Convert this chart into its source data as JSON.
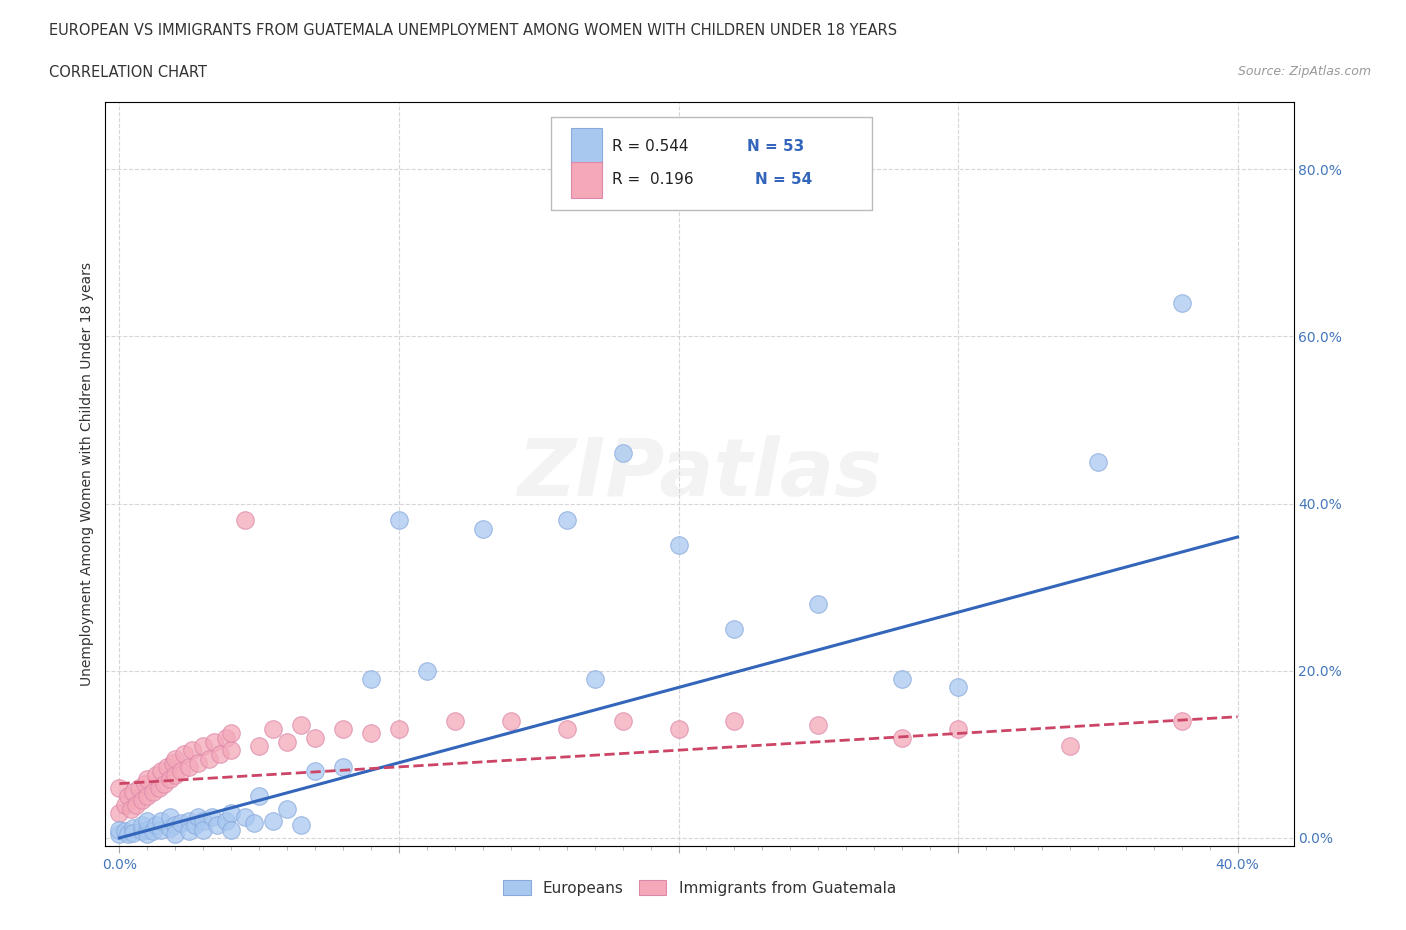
{
  "title_line1": "EUROPEAN VS IMMIGRANTS FROM GUATEMALA UNEMPLOYMENT AMONG WOMEN WITH CHILDREN UNDER 18 YEARS",
  "title_line2": "CORRELATION CHART",
  "source_text": "Source: ZipAtlas.com",
  "ylabel": "Unemployment Among Women with Children Under 18 years",
  "xlim": [
    -0.005,
    0.42
  ],
  "ylim": [
    -0.01,
    0.88
  ],
  "xtick_labels": [
    "0.0%",
    "",
    "",
    "",
    "",
    "",
    "",
    "",
    "",
    "",
    "",
    "",
    "",
    "",
    "",
    "",
    "",
    "",
    "",
    "",
    "",
    "",
    "",
    "",
    "",
    "",
    "",
    "",
    "",
    "",
    "",
    "",
    "",
    "",
    "",
    "",
    "",
    "",
    "",
    "",
    "40.0%"
  ],
  "xtick_values": [
    0.0,
    0.01,
    0.02,
    0.03,
    0.04,
    0.05,
    0.06,
    0.07,
    0.08,
    0.09,
    0.1,
    0.11,
    0.12,
    0.13,
    0.14,
    0.15,
    0.16,
    0.17,
    0.18,
    0.19,
    0.2,
    0.21,
    0.22,
    0.23,
    0.24,
    0.25,
    0.26,
    0.27,
    0.28,
    0.29,
    0.3,
    0.31,
    0.32,
    0.33,
    0.34,
    0.35,
    0.36,
    0.37,
    0.38,
    0.39,
    0.4
  ],
  "ytick_labels": [
    "0.0%",
    "20.0%",
    "40.0%",
    "60.0%",
    "80.0%"
  ],
  "ytick_values": [
    0.0,
    0.2,
    0.4,
    0.6,
    0.8
  ],
  "blue_color": "#a8c8f0",
  "blue_edge_color": "#88aadd",
  "pink_color": "#f4a8b8",
  "pink_edge_color": "#dd88aa",
  "blue_line_color": "#3366bb",
  "pink_line_color": "#cc4466",
  "background_color": "#ffffff",
  "grid_color": "#cccccc",
  "watermark_text": "ZIPatlas",
  "label1": "Europeans",
  "label2": "Immigrants from Guatemala",
  "title_color": "#333333",
  "axis_label_color": "#555555",
  "tick_color": "#4477bb",
  "r_text_color": "#222222",
  "n_text_color": "#3366bb",
  "blue_scatter_x": [
    0.0,
    0.0,
    0.002,
    0.003,
    0.005,
    0.005,
    0.008,
    0.008,
    0.01,
    0.01,
    0.01,
    0.012,
    0.013,
    0.015,
    0.015,
    0.018,
    0.018,
    0.02,
    0.02,
    0.022,
    0.025,
    0.025,
    0.027,
    0.028,
    0.03,
    0.03,
    0.033,
    0.035,
    0.038,
    0.04,
    0.04,
    0.045,
    0.048,
    0.05,
    0.055,
    0.06,
    0.065,
    0.07,
    0.08,
    0.09,
    0.1,
    0.11,
    0.13,
    0.16,
    0.17,
    0.18,
    0.2,
    0.22,
    0.25,
    0.28,
    0.3,
    0.35,
    0.38
  ],
  "blue_scatter_y": [
    0.005,
    0.01,
    0.008,
    0.005,
    0.012,
    0.006,
    0.008,
    0.015,
    0.01,
    0.005,
    0.02,
    0.008,
    0.015,
    0.01,
    0.02,
    0.012,
    0.025,
    0.015,
    0.005,
    0.018,
    0.02,
    0.008,
    0.015,
    0.025,
    0.02,
    0.01,
    0.025,
    0.015,
    0.02,
    0.03,
    0.01,
    0.025,
    0.018,
    0.05,
    0.02,
    0.035,
    0.015,
    0.08,
    0.085,
    0.19,
    0.38,
    0.2,
    0.37,
    0.38,
    0.19,
    0.46,
    0.35,
    0.25,
    0.28,
    0.19,
    0.18,
    0.45,
    0.64
  ],
  "pink_scatter_x": [
    0.0,
    0.0,
    0.002,
    0.003,
    0.004,
    0.005,
    0.006,
    0.007,
    0.008,
    0.009,
    0.01,
    0.01,
    0.012,
    0.013,
    0.014,
    0.015,
    0.016,
    0.017,
    0.018,
    0.019,
    0.02,
    0.02,
    0.022,
    0.023,
    0.025,
    0.026,
    0.028,
    0.03,
    0.032,
    0.034,
    0.036,
    0.038,
    0.04,
    0.04,
    0.045,
    0.05,
    0.055,
    0.06,
    0.065,
    0.07,
    0.08,
    0.09,
    0.1,
    0.12,
    0.14,
    0.16,
    0.18,
    0.2,
    0.22,
    0.25,
    0.28,
    0.3,
    0.34,
    0.38
  ],
  "pink_scatter_y": [
    0.03,
    0.06,
    0.04,
    0.05,
    0.035,
    0.055,
    0.04,
    0.06,
    0.045,
    0.065,
    0.05,
    0.07,
    0.055,
    0.075,
    0.06,
    0.08,
    0.065,
    0.085,
    0.07,
    0.09,
    0.075,
    0.095,
    0.08,
    0.1,
    0.085,
    0.105,
    0.09,
    0.11,
    0.095,
    0.115,
    0.1,
    0.12,
    0.105,
    0.125,
    0.38,
    0.11,
    0.13,
    0.115,
    0.135,
    0.12,
    0.13,
    0.125,
    0.13,
    0.14,
    0.14,
    0.13,
    0.14,
    0.13,
    0.14,
    0.135,
    0.12,
    0.13,
    0.11,
    0.14
  ],
  "blue_line_x": [
    0.0,
    0.4
  ],
  "blue_line_y": [
    0.0,
    0.36
  ],
  "pink_line_x": [
    0.0,
    0.4
  ],
  "pink_line_y": [
    0.065,
    0.145
  ]
}
